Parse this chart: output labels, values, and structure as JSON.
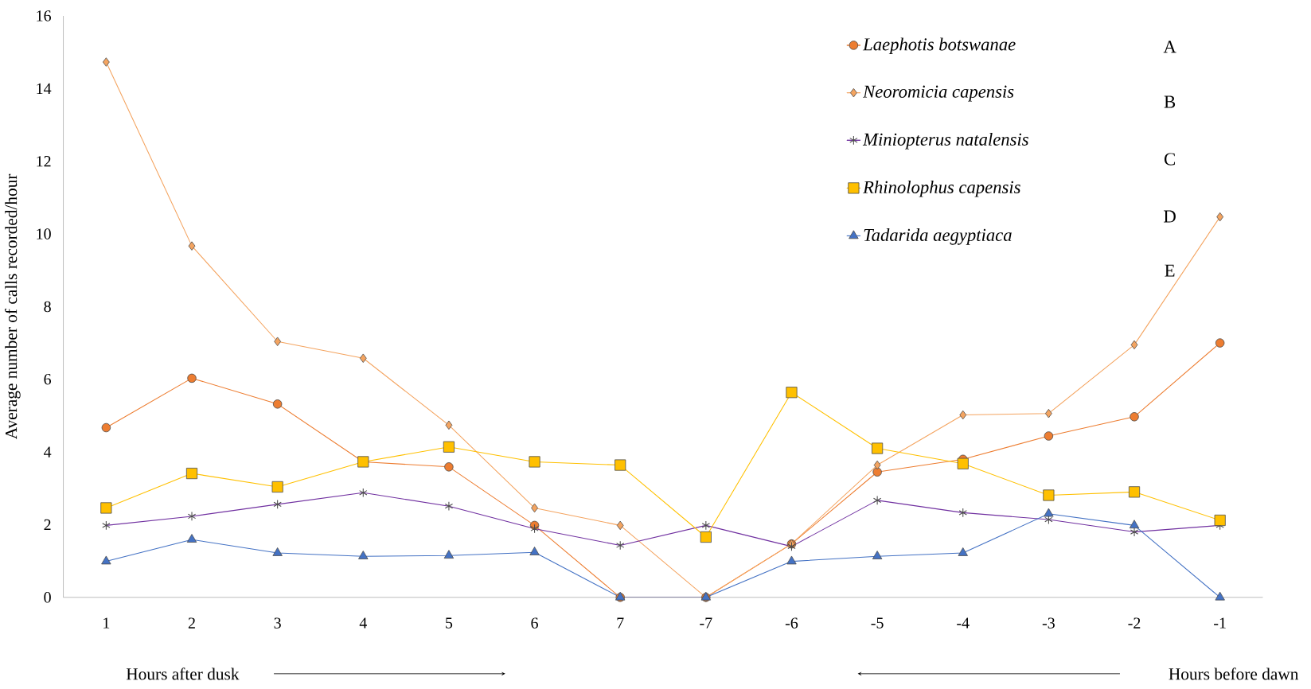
{
  "chart_data": {
    "type": "line",
    "ylabel": "Average number of calls recorded/hour",
    "categories": [
      "1",
      "2",
      "3",
      "4",
      "5",
      "6",
      "7",
      "-7",
      "-6",
      "-5",
      "-4",
      "-3",
      "-2",
      "-1"
    ],
    "series": [
      {
        "name": "Laephotis botswanae",
        "color": "#ed7d31",
        "marker": "circle",
        "values": [
          4.67,
          6.03,
          5.32,
          3.73,
          3.59,
          1.98,
          0,
          0,
          1.47,
          3.45,
          3.8,
          4.44,
          4.97,
          7.0
        ]
      },
      {
        "name": "Neoromicia capensis",
        "color": "#f4a460",
        "marker": "diamond",
        "values": [
          14.73,
          9.67,
          7.04,
          6.58,
          4.74,
          2.46,
          1.98,
          0,
          1.47,
          3.64,
          5.02,
          5.06,
          6.95,
          10.47
        ]
      },
      {
        "name": "Miniopterus natalensis",
        "color": "#7030a0",
        "marker": "cross",
        "values": [
          1.98,
          2.23,
          2.56,
          2.88,
          2.51,
          1.89,
          1.43,
          1.98,
          1.4,
          2.67,
          2.33,
          2.14,
          1.8,
          1.98
        ]
      },
      {
        "name": "Rhinolophus capensis",
        "color": "#ffc000",
        "marker": "square",
        "values": [
          2.46,
          3.41,
          3.04,
          3.73,
          4.14,
          3.73,
          3.64,
          1.66,
          5.64,
          4.1,
          3.68,
          2.81,
          2.9,
          2.12
        ]
      },
      {
        "name": "Tadarida aegyptiaca",
        "color": "#4472c4",
        "marker": "triangle",
        "values": [
          0.99,
          1.59,
          1.22,
          1.13,
          1.15,
          1.24,
          0,
          0,
          0.99,
          1.13,
          1.22,
          2.3,
          1.98,
          0
        ]
      }
    ],
    "ylim": [
      0,
      16
    ],
    "yticks": [
      0,
      2,
      4,
      6,
      8,
      10,
      12,
      14,
      16
    ],
    "legend": "top right",
    "annotations": [
      "A",
      "B",
      "C",
      "D",
      "E",
      "Hours after dusk",
      "Hours before dawn"
    ]
  }
}
